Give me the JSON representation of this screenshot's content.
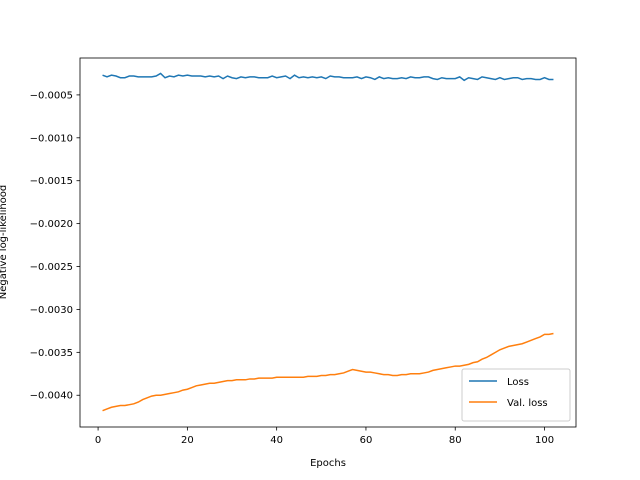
{
  "chart_data": {
    "type": "line",
    "x_label": "Epochs",
    "y_label": "Negative log-likelihood",
    "x": [
      1,
      2,
      3,
      4,
      5,
      6,
      7,
      8,
      9,
      10,
      11,
      12,
      13,
      14,
      15,
      16,
      17,
      18,
      19,
      20,
      21,
      22,
      23,
      24,
      25,
      26,
      27,
      28,
      29,
      30,
      31,
      32,
      33,
      34,
      35,
      36,
      37,
      38,
      39,
      40,
      41,
      42,
      43,
      44,
      45,
      46,
      47,
      48,
      49,
      50,
      51,
      52,
      53,
      54,
      55,
      56,
      57,
      58,
      59,
      60,
      61,
      62,
      63,
      64,
      65,
      66,
      67,
      68,
      69,
      70,
      71,
      72,
      73,
      74,
      75,
      76,
      77,
      78,
      79,
      80,
      81,
      82,
      83,
      84,
      85,
      86,
      87,
      88,
      89,
      90,
      91,
      92,
      93,
      94,
      95,
      96,
      97,
      98,
      99,
      100,
      101,
      102
    ],
    "series": [
      {
        "name": "Loss",
        "color": "#1f77b4",
        "values": [
          -0.00027,
          -0.00029,
          -0.00027,
          -0.00028,
          -0.0003,
          -0.0003,
          -0.00028,
          -0.00028,
          -0.00029,
          -0.00029,
          -0.00029,
          -0.00029,
          -0.00028,
          -0.00025,
          -0.0003,
          -0.00028,
          -0.00029,
          -0.00027,
          -0.00028,
          -0.00027,
          -0.00028,
          -0.00028,
          -0.00028,
          -0.00029,
          -0.00028,
          -0.00029,
          -0.00028,
          -0.00031,
          -0.00028,
          -0.0003,
          -0.00031,
          -0.00029,
          -0.0003,
          -0.00029,
          -0.00029,
          -0.0003,
          -0.0003,
          -0.0003,
          -0.00028,
          -0.0003,
          -0.00029,
          -0.00028,
          -0.00031,
          -0.00027,
          -0.0003,
          -0.00029,
          -0.0003,
          -0.00029,
          -0.0003,
          -0.00029,
          -0.00031,
          -0.00028,
          -0.00029,
          -0.00029,
          -0.0003,
          -0.0003,
          -0.0003,
          -0.00029,
          -0.00031,
          -0.00029,
          -0.0003,
          -0.00032,
          -0.00029,
          -0.00031,
          -0.0003,
          -0.00031,
          -0.00031,
          -0.0003,
          -0.00031,
          -0.00029,
          -0.0003,
          -0.0003,
          -0.00029,
          -0.00029,
          -0.00031,
          -0.00032,
          -0.0003,
          -0.00031,
          -0.00031,
          -0.00031,
          -0.00029,
          -0.00033,
          -0.0003,
          -0.00031,
          -0.00032,
          -0.00029,
          -0.0003,
          -0.00031,
          -0.00032,
          -0.0003,
          -0.00032,
          -0.00031,
          -0.0003,
          -0.0003,
          -0.00032,
          -0.00031,
          -0.00031,
          -0.00032,
          -0.00032,
          -0.0003,
          -0.00032,
          -0.00032
        ]
      },
      {
        "name": "Val. loss",
        "color": "#ff7f0e",
        "values": [
          -0.00418,
          -0.00416,
          -0.00414,
          -0.00413,
          -0.00412,
          -0.00412,
          -0.00411,
          -0.0041,
          -0.00408,
          -0.00405,
          -0.00403,
          -0.00401,
          -0.004,
          -0.004,
          -0.00399,
          -0.00398,
          -0.00397,
          -0.00396,
          -0.00394,
          -0.00393,
          -0.00391,
          -0.00389,
          -0.00388,
          -0.00387,
          -0.00386,
          -0.00386,
          -0.00385,
          -0.00384,
          -0.00383,
          -0.00383,
          -0.00382,
          -0.00382,
          -0.00382,
          -0.00381,
          -0.00381,
          -0.0038,
          -0.0038,
          -0.0038,
          -0.0038,
          -0.00379,
          -0.00379,
          -0.00379,
          -0.00379,
          -0.00379,
          -0.00379,
          -0.00379,
          -0.00378,
          -0.00378,
          -0.00378,
          -0.00377,
          -0.00377,
          -0.00376,
          -0.00376,
          -0.00375,
          -0.00374,
          -0.00372,
          -0.0037,
          -0.00371,
          -0.00372,
          -0.00373,
          -0.00373,
          -0.00374,
          -0.00375,
          -0.00376,
          -0.00376,
          -0.00377,
          -0.00377,
          -0.00376,
          -0.00376,
          -0.00375,
          -0.00375,
          -0.00375,
          -0.00374,
          -0.00373,
          -0.00371,
          -0.0037,
          -0.00369,
          -0.00368,
          -0.00367,
          -0.00366,
          -0.00366,
          -0.00365,
          -0.00364,
          -0.00362,
          -0.00361,
          -0.00358,
          -0.00356,
          -0.00353,
          -0.0035,
          -0.00347,
          -0.00345,
          -0.00343,
          -0.00342,
          -0.00341,
          -0.0034,
          -0.00338,
          -0.00336,
          -0.00334,
          -0.00332,
          -0.00329,
          -0.00329,
          -0.00328
        ]
      }
    ],
    "xlim": [
      -4.05,
      107.05
    ],
    "xticks": [
      0,
      20,
      40,
      60,
      80,
      100
    ],
    "ylim": [
      -0.00437,
      -7e-05
    ],
    "yticks": [
      {
        "value": -0.004,
        "label": "−0.0040"
      },
      {
        "value": -0.0035,
        "label": "−0.0035"
      },
      {
        "value": -0.003,
        "label": "−0.0030"
      },
      {
        "value": -0.0025,
        "label": "−0.0025"
      },
      {
        "value": -0.002,
        "label": "−0.0020"
      },
      {
        "value": -0.0015,
        "label": "−0.0015"
      },
      {
        "value": -0.001,
        "label": "−0.0010"
      },
      {
        "value": -0.0005,
        "label": "−0.0005"
      }
    ],
    "grid": false,
    "legend": "lower right"
  }
}
